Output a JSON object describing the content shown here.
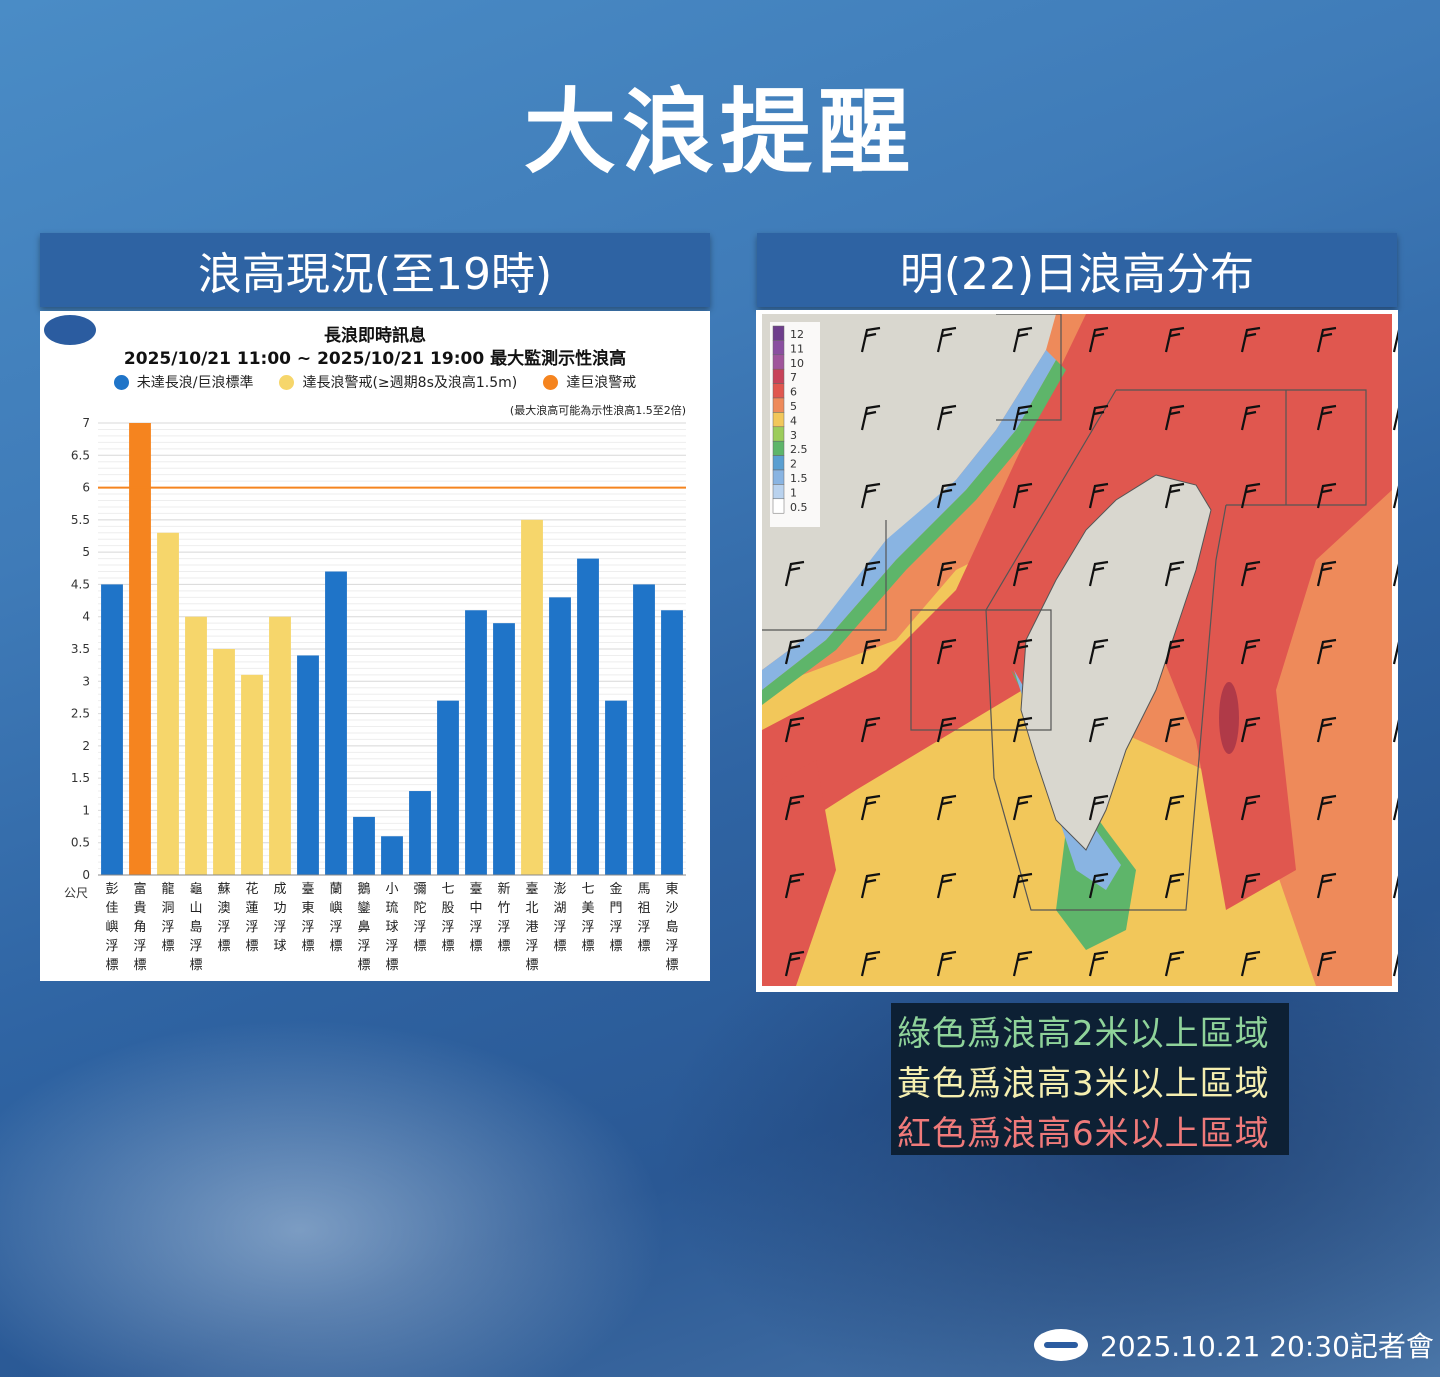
{
  "page": {
    "title": "大浪提醒",
    "left_header": "浪高現況(至19時)",
    "right_header": "明(22)日浪高分布",
    "captions": [
      "綠色爲浪高2米以上區域",
      "黃色爲浪高3米以上區域",
      "紅色爲浪高6米以上區域"
    ],
    "footer": "2025.10.21 20:30記者會"
  },
  "chart_data": {
    "type": "bar",
    "title": "長浪即時訊息",
    "subtitle": "2025/10/21 11:00 ~ 2025/10/21 19:00 最大監測示性浪高",
    "note": "(最大浪高可能為示性浪高1.5至2倍)",
    "ylabel": "公尺",
    "ylim": [
      0,
      7
    ],
    "yticks": [
      "0",
      "0.5",
      "1",
      "1.5",
      "2",
      "2.5",
      "3",
      "3.5",
      "4",
      "4.5",
      "5",
      "5.5",
      "6",
      "6.5",
      "7"
    ],
    "legend": [
      {
        "label": "未達長浪/巨浪標準",
        "color": "#1f74c8"
      },
      {
        "label": "達長浪警戒(≥週期8s及浪高1.5m)",
        "color": "#f6d66b"
      },
      {
        "label": "達巨浪警戒",
        "color": "#f5841f"
      }
    ],
    "threshold": {
      "value": 6,
      "color": "#f5841f"
    },
    "categories": [
      "彭佳嶼浮標",
      "富貴角浮標",
      "龍洞浮標",
      "龜山島浮標",
      "蘇澳浮標",
      "花蓮浮標",
      "成功浮球",
      "臺東浮標",
      "蘭嶼浮標",
      "鵝鑾鼻浮標",
      "小琉球浮標",
      "彌陀浮標",
      "七股浮標",
      "臺中浮標",
      "新竹浮標",
      "臺北港浮標",
      "澎湖浮標",
      "七美浮標",
      "金門浮標",
      "馬祖浮標",
      "東沙島浮標"
    ],
    "values": [
      4.5,
      7.0,
      5.3,
      4.0,
      3.5,
      3.1,
      4.0,
      3.4,
      4.7,
      0.9,
      0.6,
      1.3,
      2.7,
      4.1,
      3.9,
      5.5,
      4.3,
      4.9,
      2.7,
      4.5,
      4.1
    ],
    "colors": [
      "#1f74c8",
      "#f5841f",
      "#f6d66b",
      "#f6d66b",
      "#f6d66b",
      "#f6d66b",
      "#f6d66b",
      "#1f74c8",
      "#1f74c8",
      "#1f74c8",
      "#1f74c8",
      "#1f74c8",
      "#1f74c8",
      "#1f74c8",
      "#1f74c8",
      "#f6d66b",
      "#1f74c8",
      "#1f74c8",
      "#1f74c8",
      "#1f74c8",
      "#1f74c8"
    ]
  },
  "map": {
    "scale_labels": [
      "12",
      "11",
      "10",
      "7",
      "6",
      "5",
      "4",
      "3",
      "2.5",
      "2",
      "1.5",
      "1",
      "0.5"
    ],
    "scale_colors": [
      "#6e3e8c",
      "#8a4fa0",
      "#a0559b",
      "#c8435a",
      "#e0574f",
      "#ee8a5a",
      "#f2c75a",
      "#9ccc5b",
      "#5eb56a",
      "#5a9fd1",
      "#89b4e2",
      "#b9d2ee",
      "#ffffff"
    ]
  }
}
